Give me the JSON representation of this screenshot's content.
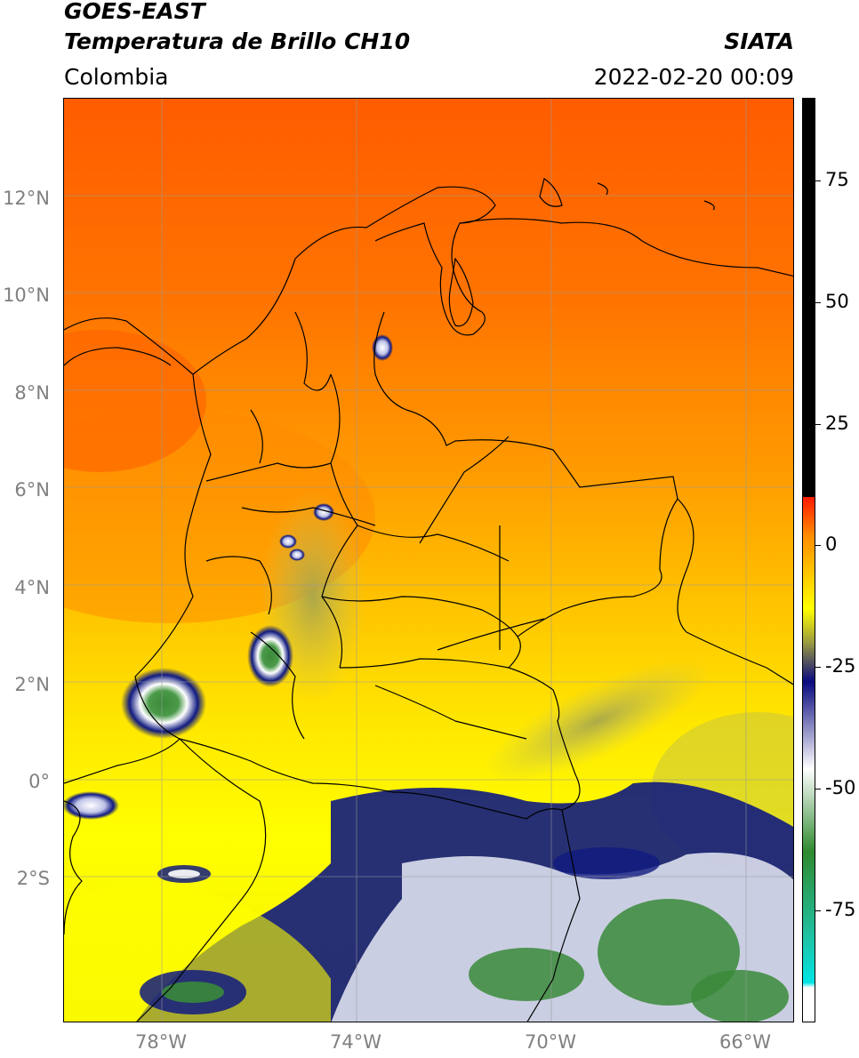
{
  "header": {
    "title_line1": "GOES-EAST",
    "title_line2": "Temperatura de Brillo CH10",
    "organization": "SIATA",
    "region": "Colombia",
    "datetime": "2022-02-20 00:09"
  },
  "map": {
    "lon_range": [
      -80,
      -65
    ],
    "lat_range": [
      -5,
      14
    ],
    "lat_labels": [
      {
        "value": 12,
        "text": "12°N"
      },
      {
        "value": 10,
        "text": "10°N"
      },
      {
        "value": 8,
        "text": "8°N"
      },
      {
        "value": 6,
        "text": "6°N"
      },
      {
        "value": 4,
        "text": "4°N"
      },
      {
        "value": 2,
        "text": "2°N"
      },
      {
        "value": 0,
        "text": "0°"
      },
      {
        "value": -2,
        "text": "2°S"
      }
    ],
    "lon_labels": [
      {
        "value": -78,
        "text": "78°W"
      },
      {
        "value": -74,
        "text": "74°W"
      },
      {
        "value": -70,
        "text": "70°W"
      },
      {
        "value": -66,
        "text": "66°W"
      }
    ],
    "colors": {
      "warm": "#ff6a00",
      "mid": "#ffb000",
      "cool": "#ffff00",
      "cold_blue": "#101a80",
      "cold_white": "#ffffff",
      "cold_green": "#3a8a3a",
      "border": "#000000",
      "grid": "#9a9a9a"
    }
  },
  "colorbar": {
    "range": [
      -100,
      90
    ],
    "ticks": [
      {
        "value": 75,
        "text": "75"
      },
      {
        "value": 50,
        "text": "50"
      },
      {
        "value": 25,
        "text": "25"
      },
      {
        "value": 0,
        "text": "0"
      },
      {
        "value": -25,
        "text": "-25"
      },
      {
        "value": -50,
        "text": "-50"
      },
      {
        "value": -75,
        "text": "-75"
      }
    ],
    "colors": {
      "black": "#000000",
      "red": "#ff1a00",
      "orange": "#ff8c00",
      "yellow": "#ffff00",
      "olive": "#9a9a40",
      "navy": "#0a0a80",
      "white": "#ffffff",
      "green": "#2f8a2f",
      "teal": "#20c0a0",
      "cyan": "#00e5e5"
    }
  }
}
